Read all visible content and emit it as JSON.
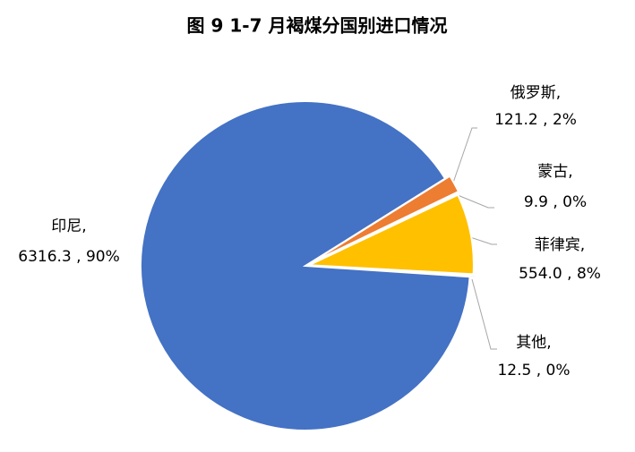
{
  "chart_data": {
    "type": "pie",
    "title": "图 9 1-7 月褐煤分国别进口情况",
    "categories": [
      "俄罗斯,",
      "蒙古,",
      "菲律宾,",
      "其他,",
      "印尼,"
    ],
    "values": [
      121.2,
      9.9,
      554.0,
      12.5,
      6316.3
    ],
    "value_labels": [
      "121.2 , 2%",
      "9.9 , 0%",
      "554.0 , 8%",
      "12.5 , 0%",
      "6316.3 , 90%"
    ],
    "colors": [
      "#ed7d31",
      "#a5a5a5",
      "#ffc000",
      "#5b9bd5",
      "#4472c4"
    ]
  }
}
